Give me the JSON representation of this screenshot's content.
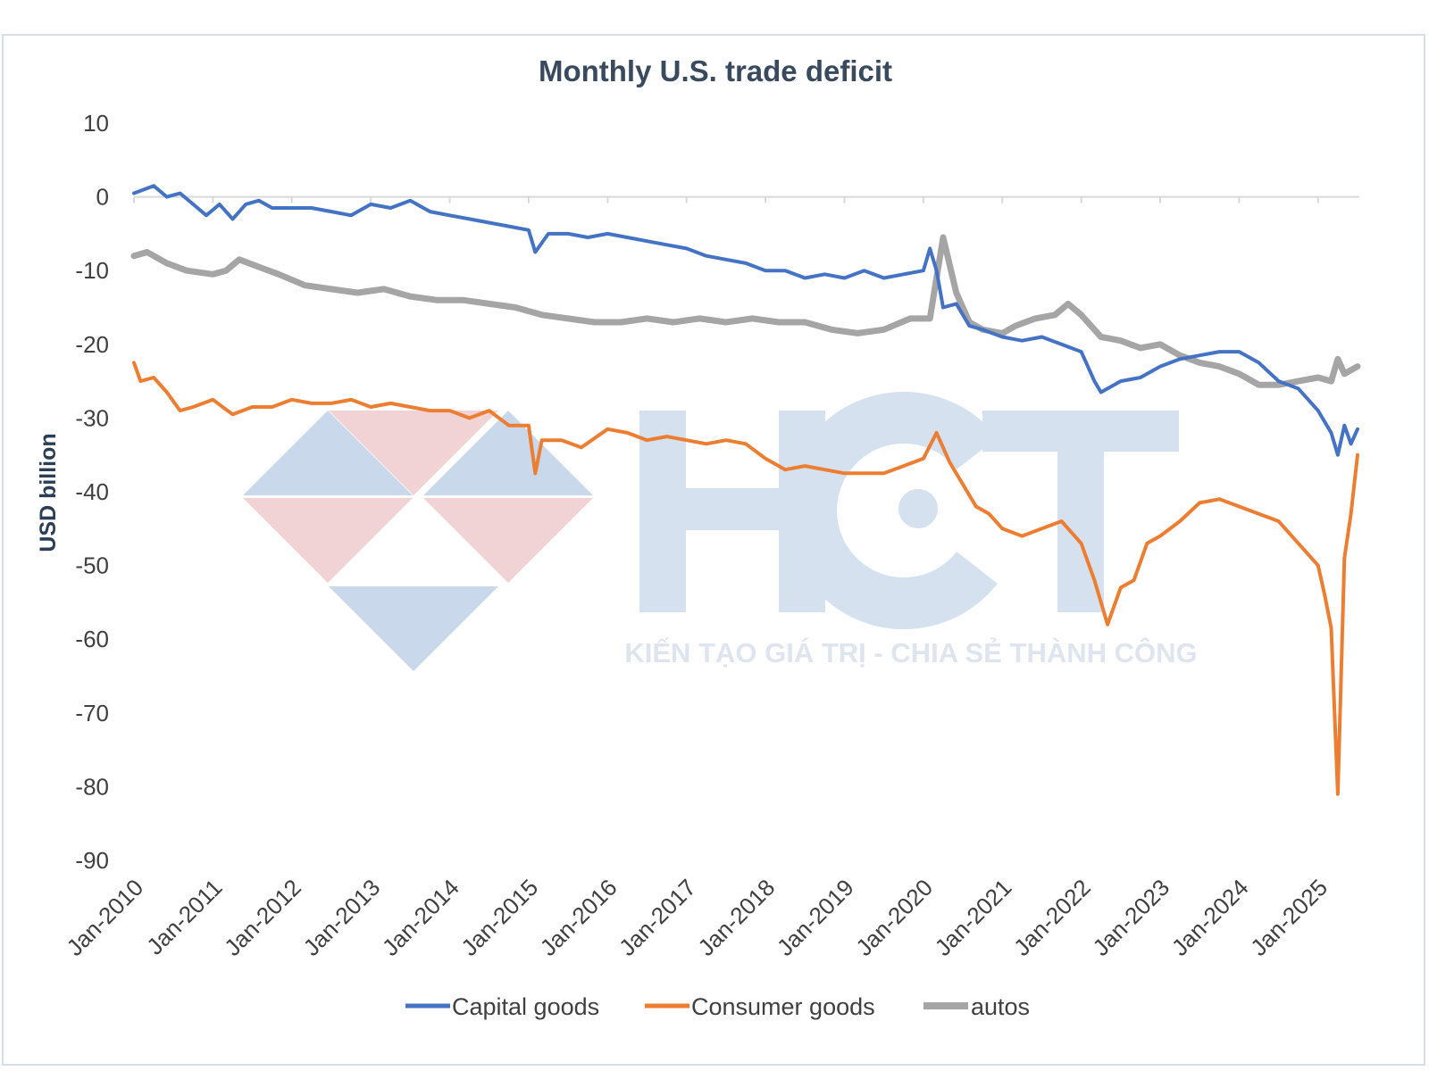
{
  "chart_data": {
    "type": "line",
    "title": "Monthly U.S. trade deficit",
    "ylabel": "USD billion",
    "xlabel": "",
    "ylim": [
      -90,
      10
    ],
    "yticks": [
      10,
      0,
      -10,
      -20,
      -30,
      -40,
      -50,
      -60,
      -70,
      -80,
      -90
    ],
    "xlim": [
      "2010-01",
      "2025-07"
    ],
    "xtick_labels": [
      "Jan-2010",
      "Jan-2011",
      "Jan-2012",
      "Jan-2013",
      "Jan-2014",
      "Jan-2015",
      "Jan-2016",
      "Jan-2017",
      "Jan-2018",
      "Jan-2019",
      "Jan-2020",
      "Jan-2021",
      "Jan-2022",
      "Jan-2023",
      "Jan-2024",
      "Jan-2025"
    ],
    "grid": false,
    "legend_position": "bottom",
    "series": [
      {
        "name": "Capital goods",
        "color": "#4472c4",
        "points": [
          [
            "2010-01",
            0.5
          ],
          [
            "2010-04",
            1.5
          ],
          [
            "2010-06",
            0
          ],
          [
            "2010-08",
            0.5
          ],
          [
            "2010-10",
            -1
          ],
          [
            "2010-12",
            -2.5
          ],
          [
            "2011-02",
            -1
          ],
          [
            "2011-04",
            -3
          ],
          [
            "2011-06",
            -1
          ],
          [
            "2011-08",
            -0.5
          ],
          [
            "2011-10",
            -1.5
          ],
          [
            "2012-01",
            -1.5
          ],
          [
            "2012-04",
            -1.5
          ],
          [
            "2012-07",
            -2
          ],
          [
            "2012-10",
            -2.5
          ],
          [
            "2013-01",
            -1
          ],
          [
            "2013-04",
            -1.5
          ],
          [
            "2013-07",
            -0.5
          ],
          [
            "2013-10",
            -2
          ],
          [
            "2014-01",
            -2.5
          ],
          [
            "2014-04",
            -3
          ],
          [
            "2014-07",
            -3.5
          ],
          [
            "2014-10",
            -4
          ],
          [
            "2015-01",
            -4.5
          ],
          [
            "2015-02",
            -7.5
          ],
          [
            "2015-04",
            -5
          ],
          [
            "2015-07",
            -5
          ],
          [
            "2015-10",
            -5.5
          ],
          [
            "2016-01",
            -5
          ],
          [
            "2016-04",
            -5.5
          ],
          [
            "2016-07",
            -6
          ],
          [
            "2016-10",
            -6.5
          ],
          [
            "2017-01",
            -7
          ],
          [
            "2017-04",
            -8
          ],
          [
            "2017-07",
            -8.5
          ],
          [
            "2017-10",
            -9
          ],
          [
            "2018-01",
            -10
          ],
          [
            "2018-04",
            -10
          ],
          [
            "2018-07",
            -11
          ],
          [
            "2018-10",
            -10.5
          ],
          [
            "2019-01",
            -11
          ],
          [
            "2019-04",
            -10
          ],
          [
            "2019-07",
            -11
          ],
          [
            "2019-10",
            -10.5
          ],
          [
            "2020-01",
            -10
          ],
          [
            "2020-02",
            -7
          ],
          [
            "2020-03",
            -10
          ],
          [
            "2020-04",
            -15
          ],
          [
            "2020-06",
            -14.5
          ],
          [
            "2020-08",
            -17.5
          ],
          [
            "2020-10",
            -18
          ],
          [
            "2021-01",
            -19
          ],
          [
            "2021-04",
            -19.5
          ],
          [
            "2021-07",
            -19
          ],
          [
            "2021-10",
            -20
          ],
          [
            "2022-01",
            -21
          ],
          [
            "2022-03",
            -25
          ],
          [
            "2022-04",
            -26.5
          ],
          [
            "2022-07",
            -25
          ],
          [
            "2022-10",
            -24.5
          ],
          [
            "2023-01",
            -23
          ],
          [
            "2023-04",
            -22
          ],
          [
            "2023-07",
            -21.5
          ],
          [
            "2023-10",
            -21
          ],
          [
            "2024-01",
            -21
          ],
          [
            "2024-04",
            -22.5
          ],
          [
            "2024-07",
            -25
          ],
          [
            "2024-10",
            -26
          ],
          [
            "2025-01",
            -29
          ],
          [
            "2025-03",
            -32
          ],
          [
            "2025-04",
            -35
          ],
          [
            "2025-05",
            -31
          ],
          [
            "2025-06",
            -33.5
          ],
          [
            "2025-07",
            -31.5
          ]
        ]
      },
      {
        "name": "Consumer goods",
        "color": "#ed7d31",
        "points": [
          [
            "2010-01",
            -22.5
          ],
          [
            "2010-02",
            -25
          ],
          [
            "2010-04",
            -24.5
          ],
          [
            "2010-06",
            -26.5
          ],
          [
            "2010-08",
            -29
          ],
          [
            "2010-10",
            -28.5
          ],
          [
            "2011-01",
            -27.5
          ],
          [
            "2011-04",
            -29.5
          ],
          [
            "2011-07",
            -28.5
          ],
          [
            "2011-10",
            -28.5
          ],
          [
            "2012-01",
            -27.5
          ],
          [
            "2012-04",
            -28
          ],
          [
            "2012-07",
            -28
          ],
          [
            "2012-10",
            -27.5
          ],
          [
            "2013-01",
            -28.5
          ],
          [
            "2013-04",
            -28
          ],
          [
            "2013-07",
            -28.5
          ],
          [
            "2013-10",
            -29
          ],
          [
            "2014-01",
            -29
          ],
          [
            "2014-04",
            -30
          ],
          [
            "2014-07",
            -29
          ],
          [
            "2014-10",
            -31
          ],
          [
            "2015-01",
            -31
          ],
          [
            "2015-02",
            -37.5
          ],
          [
            "2015-03",
            -33
          ],
          [
            "2015-06",
            -33
          ],
          [
            "2015-09",
            -34
          ],
          [
            "2016-01",
            -31.5
          ],
          [
            "2016-04",
            -32
          ],
          [
            "2016-07",
            -33
          ],
          [
            "2016-10",
            -32.5
          ],
          [
            "2017-01",
            -33
          ],
          [
            "2017-04",
            -33.5
          ],
          [
            "2017-07",
            -33
          ],
          [
            "2017-10",
            -33.5
          ],
          [
            "2018-01",
            -35.5
          ],
          [
            "2018-04",
            -37
          ],
          [
            "2018-07",
            -36.5
          ],
          [
            "2018-10",
            -37
          ],
          [
            "2019-01",
            -37.5
          ],
          [
            "2019-04",
            -37.5
          ],
          [
            "2019-07",
            -37.5
          ],
          [
            "2019-10",
            -36.5
          ],
          [
            "2020-01",
            -35.5
          ],
          [
            "2020-03",
            -32
          ],
          [
            "2020-05",
            -36
          ],
          [
            "2020-07",
            -39
          ],
          [
            "2020-09",
            -42
          ],
          [
            "2020-11",
            -43
          ],
          [
            "2021-01",
            -45
          ],
          [
            "2021-04",
            -46
          ],
          [
            "2021-07",
            -45
          ],
          [
            "2021-10",
            -44
          ],
          [
            "2022-01",
            -47
          ],
          [
            "2022-03",
            -52
          ],
          [
            "2022-05",
            -58
          ],
          [
            "2022-07",
            -53
          ],
          [
            "2022-09",
            -52
          ],
          [
            "2022-11",
            -47
          ],
          [
            "2023-01",
            -46
          ],
          [
            "2023-04",
            -44
          ],
          [
            "2023-07",
            -41.5
          ],
          [
            "2023-10",
            -41
          ],
          [
            "2024-01",
            -42
          ],
          [
            "2024-04",
            -43
          ],
          [
            "2024-07",
            -44
          ],
          [
            "2024-10",
            -47
          ],
          [
            "2025-01",
            -50
          ],
          [
            "2025-02",
            -54
          ],
          [
            "2025-03",
            -58.5
          ],
          [
            "2025-04",
            -81
          ],
          [
            "2025-05",
            -49
          ],
          [
            "2025-06",
            -43
          ],
          [
            "2025-07",
            -35
          ]
        ]
      },
      {
        "name": "autos",
        "color": "#a5a5a5",
        "points": [
          [
            "2010-01",
            -8
          ],
          [
            "2010-03",
            -7.5
          ],
          [
            "2010-06",
            -9
          ],
          [
            "2010-09",
            -10
          ],
          [
            "2011-01",
            -10.5
          ],
          [
            "2011-03",
            -10
          ],
          [
            "2011-05",
            -8.5
          ],
          [
            "2011-08",
            -9.5
          ],
          [
            "2011-11",
            -10.5
          ],
          [
            "2012-03",
            -12
          ],
          [
            "2012-07",
            -12.5
          ],
          [
            "2012-11",
            -13
          ],
          [
            "2013-03",
            -12.5
          ],
          [
            "2013-07",
            -13.5
          ],
          [
            "2013-11",
            -14
          ],
          [
            "2014-03",
            -14
          ],
          [
            "2014-07",
            -14.5
          ],
          [
            "2014-11",
            -15
          ],
          [
            "2015-03",
            -16
          ],
          [
            "2015-07",
            -16.5
          ],
          [
            "2015-11",
            -17
          ],
          [
            "2016-03",
            -17
          ],
          [
            "2016-07",
            -16.5
          ],
          [
            "2016-11",
            -17
          ],
          [
            "2017-03",
            -16.5
          ],
          [
            "2017-07",
            -17
          ],
          [
            "2017-11",
            -16.5
          ],
          [
            "2018-03",
            -17
          ],
          [
            "2018-07",
            -17
          ],
          [
            "2018-11",
            -18
          ],
          [
            "2019-03",
            -18.5
          ],
          [
            "2019-07",
            -18
          ],
          [
            "2019-11",
            -16.5
          ],
          [
            "2020-02",
            -16.5
          ],
          [
            "2020-04",
            -5.5
          ],
          [
            "2020-06",
            -13
          ],
          [
            "2020-08",
            -17
          ],
          [
            "2020-10",
            -18
          ],
          [
            "2021-01",
            -18.5
          ],
          [
            "2021-03",
            -17.5
          ],
          [
            "2021-06",
            -16.5
          ],
          [
            "2021-09",
            -16
          ],
          [
            "2021-11",
            -14.5
          ],
          [
            "2022-01",
            -16
          ],
          [
            "2022-04",
            -19
          ],
          [
            "2022-07",
            -19.5
          ],
          [
            "2022-10",
            -20.5
          ],
          [
            "2023-01",
            -20
          ],
          [
            "2023-04",
            -21.5
          ],
          [
            "2023-07",
            -22.5
          ],
          [
            "2023-10",
            -23
          ],
          [
            "2024-01",
            -24
          ],
          [
            "2024-04",
            -25.5
          ],
          [
            "2024-07",
            -25.5
          ],
          [
            "2024-10",
            -25
          ],
          [
            "2025-01",
            -24.5
          ],
          [
            "2025-03",
            -25
          ],
          [
            "2025-04",
            -22
          ],
          [
            "2025-05",
            -24
          ],
          [
            "2025-07",
            -23
          ]
        ]
      }
    ]
  },
  "watermark": {
    "brand": "HCT",
    "tagline": "KIẾN TẠO GIÁ TRỊ - CHIA SẺ THÀNH CÔNG",
    "colors": {
      "blue": "#c9d8ea",
      "red": "#f1d3d5",
      "letters": "#d5e1ef"
    }
  }
}
